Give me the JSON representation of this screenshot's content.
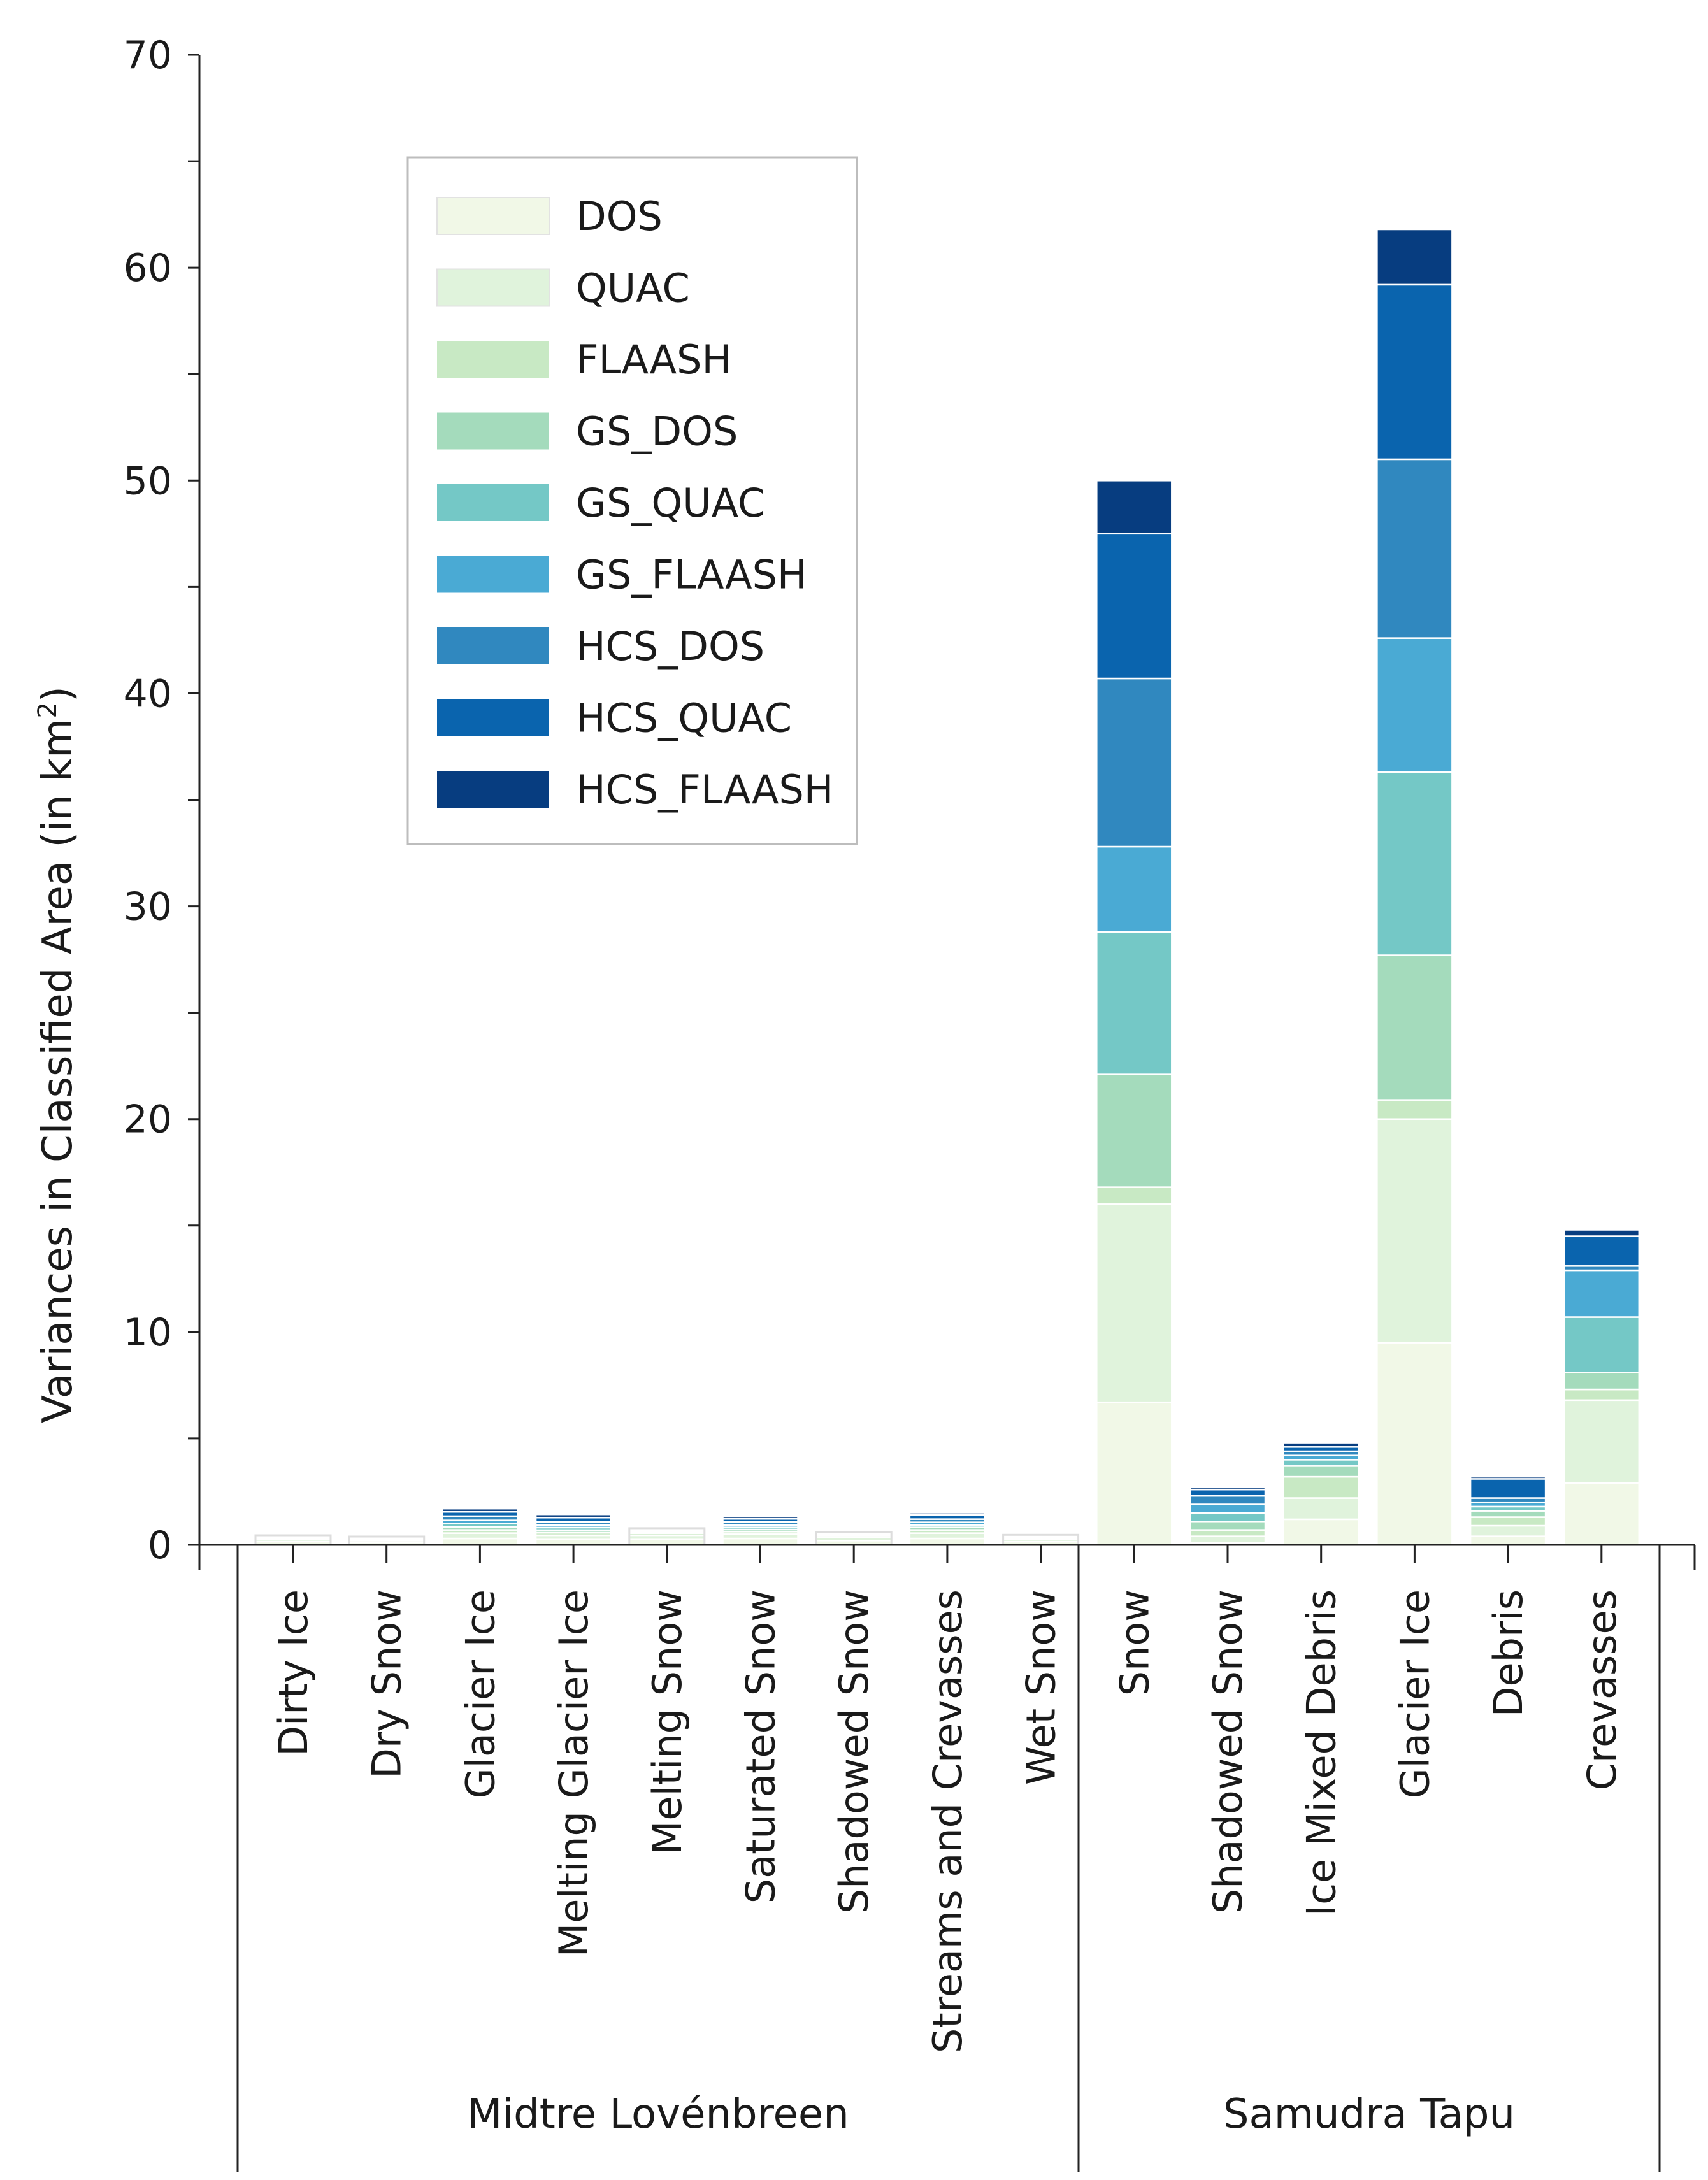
{
  "chart_data": {
    "type": "bar",
    "stacked": true,
    "title": "",
    "ylabel": "Variances in Classified Area (in km",
    "ylabel_sup": "2",
    "ylabel_close": ")",
    "ylim": [
      0,
      70
    ],
    "yticks": [
      "0",
      "10",
      "20",
      "30",
      "40",
      "50",
      "60",
      "70"
    ],
    "grid": false,
    "legend_position": "upper-left-inside",
    "groups": [
      {
        "name": "Midtre Lovénbreen",
        "categories": [
          "Dirty Ice",
          "Dry Snow",
          "Glacier Ice",
          "Melting Glacier Ice",
          "Melting Snow",
          "Saturated Snow",
          "Shadowed Snow",
          "Streams and Crevasses",
          "Wet Snow"
        ]
      },
      {
        "name": "Samudra Tapu",
        "categories": [
          "Snow",
          "Shadowed Snow",
          "Ice Mixed Debris",
          "Glacier Ice",
          "Debris",
          "Crevasses"
        ]
      }
    ],
    "series": [
      {
        "name": "DOS",
        "color": "#f1f8e7",
        "values": [
          0.15,
          0.12,
          0.3,
          0.25,
          0.25,
          0.3,
          0.2,
          0.3,
          0.15,
          6.7,
          0.1,
          1.2,
          9.5,
          0.4,
          2.9
        ]
      },
      {
        "name": "QUAC",
        "color": "#e0f3dc",
        "values": [
          0.1,
          0.08,
          0.25,
          0.2,
          0.2,
          0.2,
          0.15,
          0.25,
          0.12,
          9.3,
          0.3,
          1.0,
          10.5,
          0.5,
          3.9
        ]
      },
      {
        "name": "FLAASH",
        "color": "#c8e9c4",
        "values": [
          0.05,
          0.04,
          0.15,
          0.12,
          0.1,
          0.12,
          0.08,
          0.15,
          0.05,
          0.8,
          0.3,
          1.0,
          0.9,
          0.4,
          0.5
        ]
      },
      {
        "name": "GS_DOS",
        "color": "#a4dbbc",
        "values": [
          0.02,
          0.02,
          0.15,
          0.12,
          0.05,
          0.1,
          0.03,
          0.12,
          0.02,
          5.3,
          0.4,
          0.5,
          6.8,
          0.3,
          0.8
        ]
      },
      {
        "name": "GS_QUAC",
        "color": "#74c8c6",
        "values": [
          0.02,
          0.02,
          0.15,
          0.12,
          0.05,
          0.1,
          0.02,
          0.12,
          0.02,
          6.7,
          0.4,
          0.3,
          8.6,
          0.2,
          2.6
        ]
      },
      {
        "name": "GS_FLAASH",
        "color": "#4aaad4",
        "values": [
          0.02,
          0.02,
          0.15,
          0.12,
          0.03,
          0.1,
          0.02,
          0.12,
          0.02,
          4.0,
          0.4,
          0.2,
          6.3,
          0.2,
          2.2
        ]
      },
      {
        "name": "HCS_DOS",
        "color": "#3088bf",
        "values": [
          0.02,
          0.02,
          0.2,
          0.15,
          0.03,
          0.15,
          0.02,
          0.15,
          0.02,
          7.9,
          0.4,
          0.2,
          8.4,
          0.2,
          0.2
        ]
      },
      {
        "name": "HCS_QUAC",
        "color": "#0a64ae",
        "values": [
          0.02,
          0.02,
          0.2,
          0.2,
          0.02,
          0.15,
          0.02,
          0.2,
          0.02,
          6.8,
          0.3,
          0.2,
          8.2,
          0.9,
          1.4
        ]
      },
      {
        "name": "HCS_FLAASH",
        "color": "#073d80",
        "values": [
          0.02,
          0.02,
          0.15,
          0.15,
          0.02,
          0.1,
          0.02,
          0.1,
          0.02,
          2.5,
          0.1,
          0.2,
          2.6,
          0.1,
          0.3
        ]
      }
    ]
  }
}
